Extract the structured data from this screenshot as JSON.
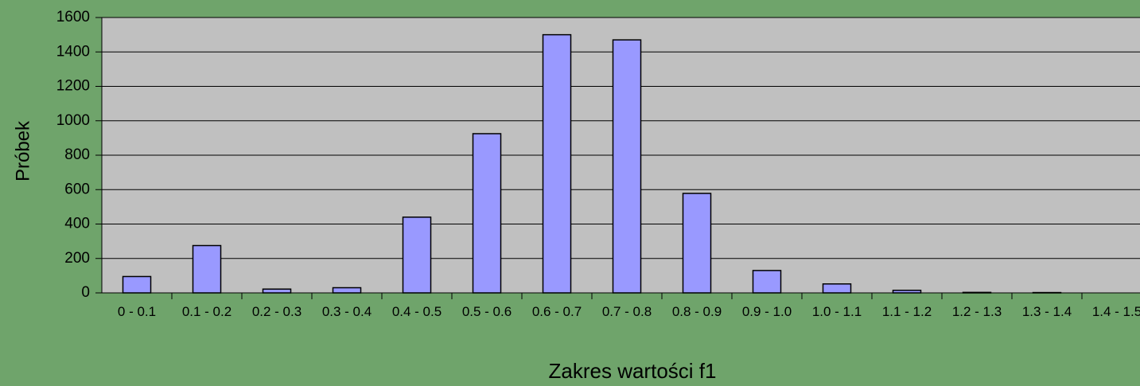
{
  "chart_data": {
    "type": "bar",
    "xlabel": "Zakres wartości f1",
    "ylabel": "Próbek",
    "categories": [
      "0 - 0.1",
      "0.1 - 0.2",
      "0.2 - 0.3",
      "0.3 - 0.4",
      "0.4 - 0.5",
      "0.5 - 0.6",
      "0.6 - 0.7",
      "0.7 - 0.8",
      "0.8 - 0.9",
      "0.9 - 1.0",
      "1.0 - 1.1",
      "1.1 - 1.2",
      "1.2 - 1.3",
      "1.3 - 1.4",
      "1.4 - 1.5"
    ],
    "values": [
      95,
      275,
      22,
      30,
      440,
      925,
      1500,
      1470,
      578,
      130,
      52,
      15,
      3,
      2,
      0
    ],
    "color": "#9999ff",
    "ylim": [
      0,
      1600
    ],
    "yticks": [
      0,
      200,
      400,
      600,
      800,
      1000,
      1200,
      1400,
      1600
    ],
    "grid": true
  }
}
